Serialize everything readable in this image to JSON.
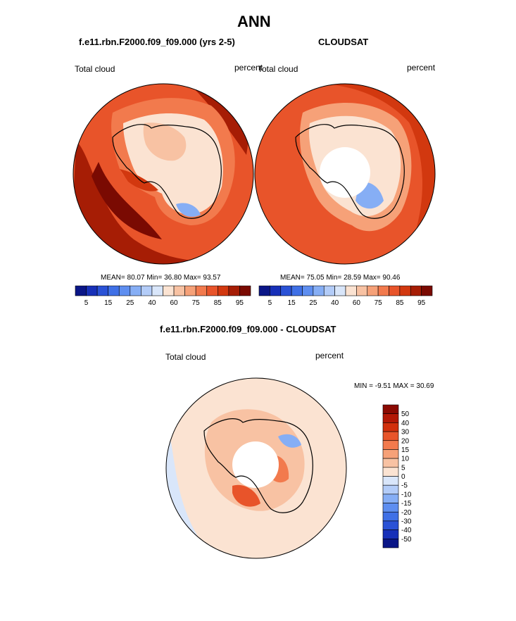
{
  "page": {
    "title": "ANN"
  },
  "chart_data": [
    {
      "type": "heatmap",
      "title": "f.e11.rbn.F2000.f09_f09.000 (yrs 2-5)",
      "left_label": "Total cloud",
      "right_label": "percent",
      "stats": {
        "mean_label": "MEAN=",
        "mean": "80.07",
        "min_label": "Min=",
        "min": "36.80",
        "max_label": "Max=",
        "max": "93.57"
      },
      "colorbar": {
        "levels": [
          5,
          10,
          15,
          20,
          25,
          30,
          40,
          50,
          60,
          70,
          75,
          80,
          85,
          90,
          95
        ],
        "tick_labels": [
          "5",
          "15",
          "25",
          "40",
          "60",
          "75",
          "85",
          "95"
        ],
        "colors": [
          "#0a1687",
          "#1730b8",
          "#2a52d6",
          "#3f70e6",
          "#5e8ef0",
          "#86aef5",
          "#b3ccf8",
          "#d9e6fa",
          "#fbe3d2",
          "#f8c2a3",
          "#f6a178",
          "#f27a4d",
          "#e8542a",
          "#d2380f",
          "#a61d05",
          "#7a0a02"
        ]
      },
      "projection": "south polar stereographic",
      "missing_data_pole": false
    },
    {
      "type": "heatmap",
      "title": "CLOUDSAT",
      "left_label": "Total cloud",
      "right_label": "percent",
      "stats": {
        "mean_label": "MEAN=",
        "mean": "75.05",
        "min_label": "Min=",
        "min": "28.59",
        "max_label": "Max=",
        "max": "90.46"
      },
      "colorbar": {
        "levels": [
          5,
          10,
          15,
          20,
          25,
          30,
          40,
          50,
          60,
          70,
          75,
          80,
          85,
          90,
          95
        ],
        "tick_labels": [
          "5",
          "15",
          "25",
          "40",
          "60",
          "75",
          "85",
          "95"
        ],
        "colors": [
          "#0a1687",
          "#1730b8",
          "#2a52d6",
          "#3f70e6",
          "#5e8ef0",
          "#86aef5",
          "#b3ccf8",
          "#d9e6fa",
          "#fbe3d2",
          "#f8c2a3",
          "#f6a178",
          "#f27a4d",
          "#e8542a",
          "#d2380f",
          "#a61d05",
          "#7a0a02"
        ]
      },
      "projection": "south polar stereographic",
      "missing_data_pole": true
    },
    {
      "type": "heatmap",
      "title": "f.e11.rbn.F2000.f09_f09.000 - CLOUDSAT",
      "left_label": "Total cloud",
      "right_label": "percent",
      "stats": {
        "min_label": "MIN =",
        "min": "-9.51",
        "max_label": "MAX =",
        "max": "30.69"
      },
      "colorbar": {
        "orientation": "vertical",
        "tick_labels": [
          "50",
          "40",
          "30",
          "20",
          "15",
          "10",
          "5",
          "0",
          "-5",
          "-10",
          "-15",
          "-20",
          "-30",
          "-40",
          "-50"
        ],
        "colors": [
          "#8b0a02",
          "#b31806",
          "#d2300c",
          "#e8552a",
          "#f27a4d",
          "#f6a178",
          "#f8c2a3",
          "#fbe3d2",
          "#d9e6fa",
          "#b3ccf8",
          "#86aef5",
          "#5e8ef0",
          "#3f70e6",
          "#2a52d6",
          "#1730b8",
          "#0a1687"
        ]
      },
      "projection": "south polar stereographic",
      "missing_data_pole": true
    }
  ]
}
